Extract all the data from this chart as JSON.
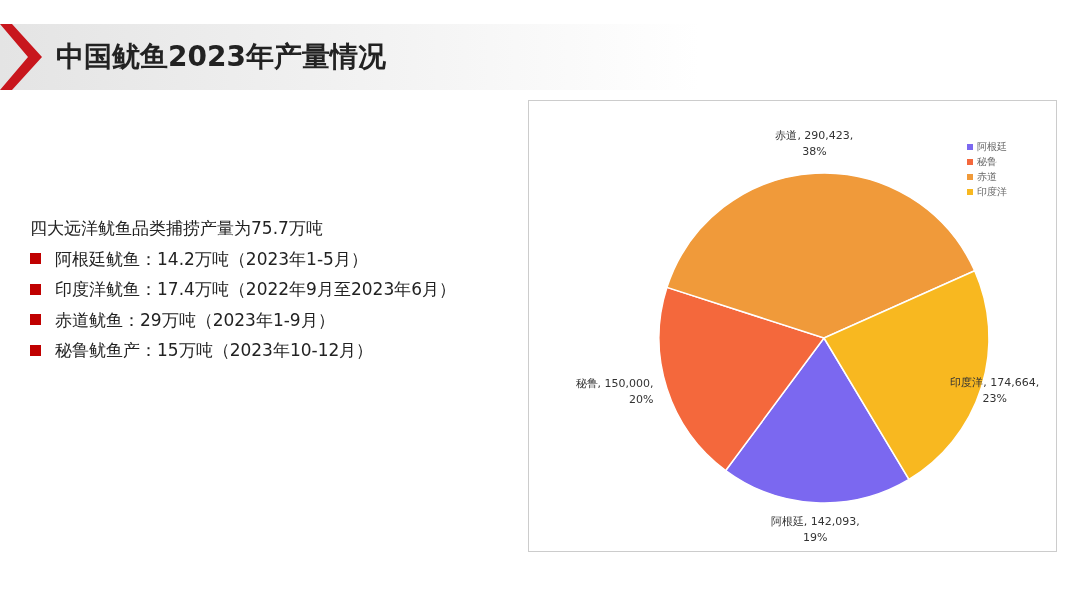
{
  "chart_data": {
    "type": "pie",
    "title": "中国鱿鱼2023年产量情况",
    "categories": [
      "阿根廷",
      "秘鲁",
      "赤道",
      "印度洋"
    ],
    "values": [
      142093,
      150000,
      290423,
      174664
    ],
    "colors": [
      "#7b68f0",
      "#f4683c",
      "#f09a3a",
      "#f8b820"
    ],
    "value_labels": [
      "阿根廷, 142,093, 19%",
      "秘鲁, 150,000, 20%",
      "赤道, 290,423, 38%",
      "印度洋, 174,664, 23%"
    ],
    "legend": "top right",
    "annotations": [
      "四大远洋鱿鱼品类捕捞产量为75.7万吨",
      "阿根廷鱿鱼：14.2万吨（2023年1-5月）",
      "印度洋鱿鱼：17.4万吨（2022年9月至2023年6月）",
      "赤道鱿鱼：29万吨（2023年1-9月）",
      "秘鲁鱿鱼产：15万吨（2023年10-12月）"
    ]
  }
}
